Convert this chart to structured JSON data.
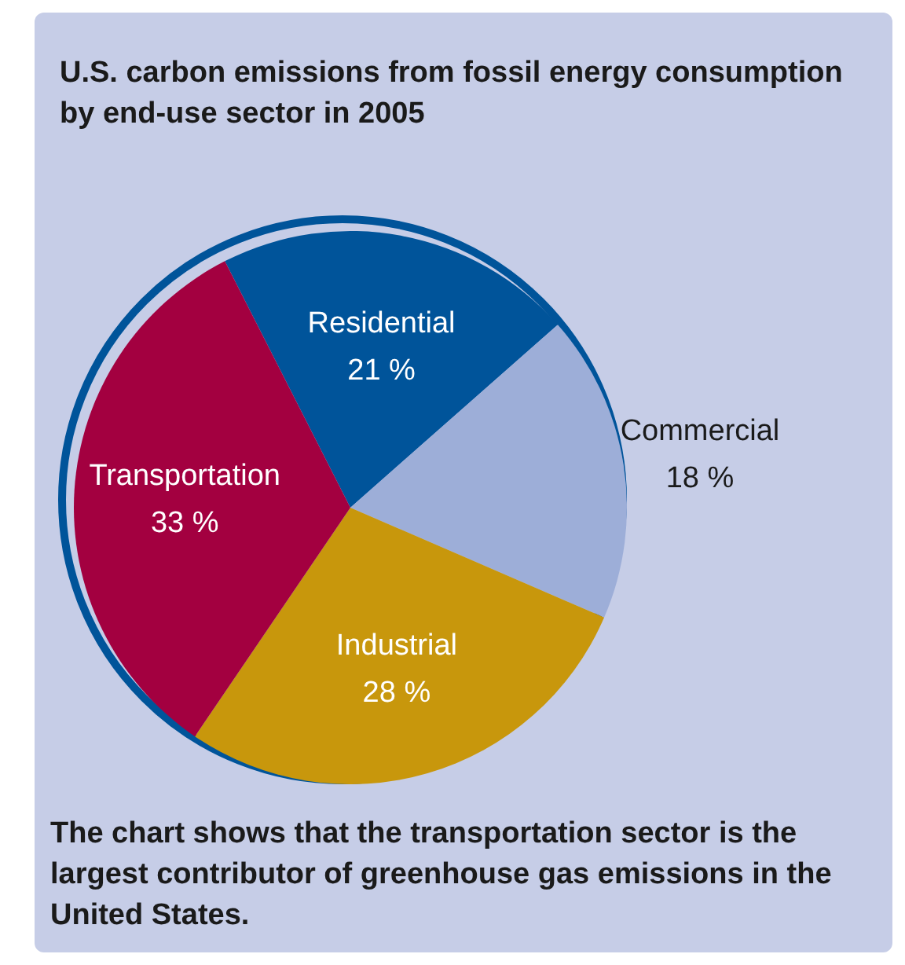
{
  "chart_data": {
    "type": "pie",
    "title": "U.S. carbon emissions from fossil energy consumption by end-use sector in 2005",
    "categories": [
      "Residential",
      "Commercial",
      "Industrial",
      "Transportation"
    ],
    "values": [
      21,
      18,
      28,
      33
    ],
    "value_labels": [
      "21 %",
      "18 %",
      "28 %",
      "33 %"
    ],
    "colors": [
      "#00549a",
      "#9daed8",
      "#c8970c",
      "#a30040"
    ],
    "annotations": [
      "The chart shows that the transportation sector is the largest contributor of greenhouse gas emissions in the United States."
    ],
    "legend": false
  }
}
